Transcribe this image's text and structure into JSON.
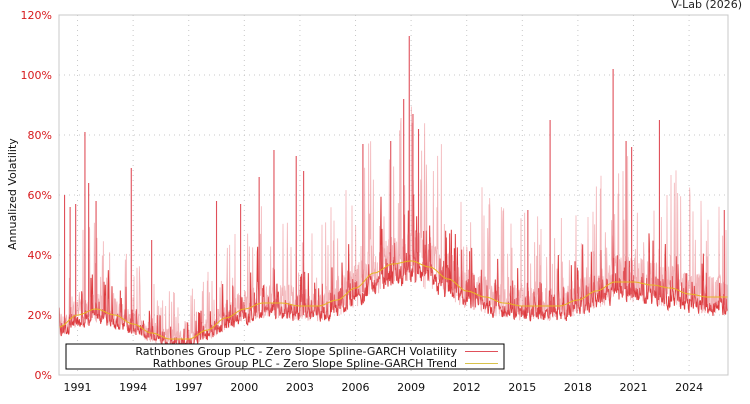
{
  "header": {
    "credit": "V-Lab (2026)"
  },
  "chart_data": {
    "type": "line",
    "title": "",
    "xlabel": "",
    "ylabel": "Annualized Volatility",
    "ylim": [
      0,
      120
    ],
    "xlim": [
      1990.0,
      2026.1
    ],
    "y_ticks": [
      "0%",
      "20%",
      "40%",
      "60%",
      "80%",
      "100%",
      "120%"
    ],
    "y_tick_values": [
      0,
      20,
      40,
      60,
      80,
      100,
      120
    ],
    "x_ticks": [
      "1991",
      "1994",
      "1997",
      "2000",
      "2003",
      "2006",
      "2009",
      "2012",
      "2015",
      "2018",
      "2021",
      "2024"
    ],
    "x_tick_values": [
      1991,
      1994,
      1997,
      2000,
      2003,
      2006,
      2009,
      2012,
      2015,
      2018,
      2021,
      2024
    ],
    "grid": true,
    "legend_position": "lower-left-inside",
    "colors": {
      "volatility": "#d7191c",
      "trend": "#e6b422",
      "axis_text": "#d7191c",
      "grid": "#cccccc"
    },
    "series": [
      {
        "name": "Rathbones Group PLC - Zero Slope Spline-GARCH Volatility",
        "kind": "volatility",
        "note": "daily series; peaks listed below, baseline tracks roughly 0.75× trend",
        "peaks": [
          {
            "x": 1990.3,
            "y": 60
          },
          {
            "x": 1990.6,
            "y": 56
          },
          {
            "x": 1990.9,
            "y": 57
          },
          {
            "x": 1991.4,
            "y": 81
          },
          {
            "x": 1991.6,
            "y": 64
          },
          {
            "x": 1992.0,
            "y": 58
          },
          {
            "x": 1993.9,
            "y": 69
          },
          {
            "x": 1995.0,
            "y": 45
          },
          {
            "x": 1998.5,
            "y": 58
          },
          {
            "x": 1999.8,
            "y": 57
          },
          {
            "x": 2000.8,
            "y": 66
          },
          {
            "x": 2001.6,
            "y": 75
          },
          {
            "x": 2002.8,
            "y": 73
          },
          {
            "x": 2003.2,
            "y": 68
          },
          {
            "x": 2006.4,
            "y": 77
          },
          {
            "x": 2007.9,
            "y": 78
          },
          {
            "x": 2008.6,
            "y": 92
          },
          {
            "x": 2008.9,
            "y": 113
          },
          {
            "x": 2009.1,
            "y": 87
          },
          {
            "x": 2009.4,
            "y": 82
          },
          {
            "x": 2016.5,
            "y": 85
          },
          {
            "x": 2015.3,
            "y": 55
          },
          {
            "x": 2019.9,
            "y": 102
          },
          {
            "x": 2020.6,
            "y": 78
          },
          {
            "x": 2020.9,
            "y": 76
          },
          {
            "x": 2022.4,
            "y": 85
          },
          {
            "x": 2025.9,
            "y": 55
          }
        ]
      },
      {
        "name": "Rathbones Group PLC - Zero Slope Spline-GARCH Trend",
        "kind": "trend",
        "points": [
          {
            "x": 1990.0,
            "y": 16
          },
          {
            "x": 1991.0,
            "y": 20
          },
          {
            "x": 1992.0,
            "y": 22
          },
          {
            "x": 1993.0,
            "y": 20
          },
          {
            "x": 1994.0,
            "y": 17
          },
          {
            "x": 1995.0,
            "y": 14
          },
          {
            "x": 1996.0,
            "y": 12
          },
          {
            "x": 1997.0,
            "y": 12
          },
          {
            "x": 1998.0,
            "y": 15
          },
          {
            "x": 1999.0,
            "y": 19
          },
          {
            "x": 2000.0,
            "y": 22
          },
          {
            "x": 2001.0,
            "y": 24
          },
          {
            "x": 2002.0,
            "y": 24
          },
          {
            "x": 2003.0,
            "y": 23
          },
          {
            "x": 2004.0,
            "y": 23
          },
          {
            "x": 2005.0,
            "y": 25
          },
          {
            "x": 2006.0,
            "y": 29
          },
          {
            "x": 2007.0,
            "y": 34
          },
          {
            "x": 2008.0,
            "y": 37
          },
          {
            "x": 2009.0,
            "y": 38
          },
          {
            "x": 2010.0,
            "y": 36
          },
          {
            "x": 2011.0,
            "y": 32
          },
          {
            "x": 2012.0,
            "y": 28
          },
          {
            "x": 2013.0,
            "y": 26
          },
          {
            "x": 2014.0,
            "y": 24
          },
          {
            "x": 2015.0,
            "y": 23
          },
          {
            "x": 2016.0,
            "y": 23
          },
          {
            "x": 2017.0,
            "y": 23
          },
          {
            "x": 2018.0,
            "y": 25
          },
          {
            "x": 2019.0,
            "y": 28
          },
          {
            "x": 2020.0,
            "y": 31
          },
          {
            "x": 2021.0,
            "y": 31
          },
          {
            "x": 2022.0,
            "y": 30
          },
          {
            "x": 2023.0,
            "y": 29
          },
          {
            "x": 2024.0,
            "y": 27
          },
          {
            "x": 2025.0,
            "y": 26
          },
          {
            "x": 2026.1,
            "y": 26
          }
        ]
      }
    ]
  },
  "legend": {
    "items": [
      {
        "label": "Rathbones Group PLC - Zero Slope Spline-GARCH Volatility",
        "color": "#e0505a"
      },
      {
        "label": "Rathbones Group PLC - Zero Slope Spline-GARCH Trend",
        "color": "#d9c24a"
      }
    ]
  }
}
